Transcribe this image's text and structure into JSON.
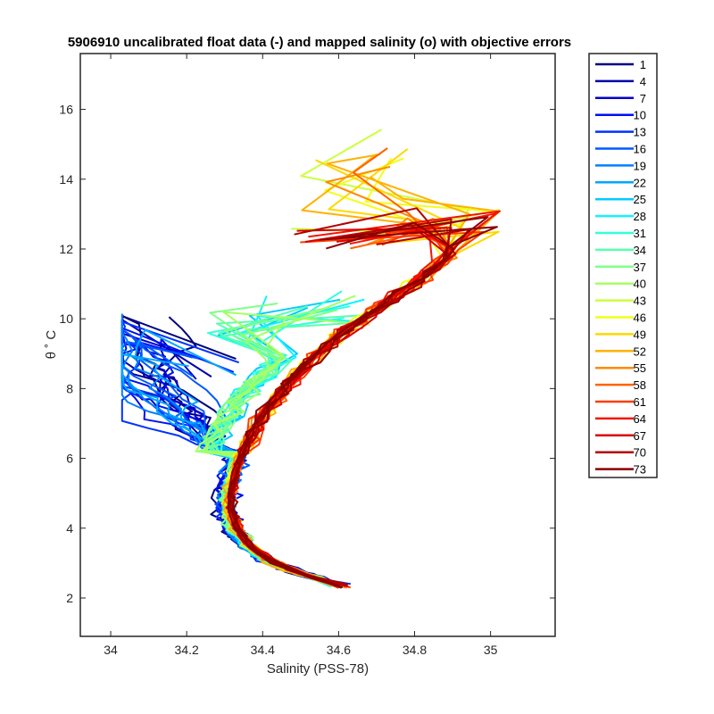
{
  "chart_data": {
    "type": "line",
    "title": "5906910 uncalibrated float data (-) and mapped salinity (o) with objective errors",
    "xlabel": "Salinity (PSS-78)",
    "ylabel": "θ ˚ C",
    "xlim": [
      33.92,
      35.17
    ],
    "ylim": [
      0.9,
      17.6
    ],
    "xticks": [
      34,
      34.2,
      34.4,
      34.6,
      34.8,
      35
    ],
    "xtick_labels": [
      "34",
      "34.2",
      "34.4",
      "34.6",
      "34.8",
      "35"
    ],
    "yticks": [
      2,
      4,
      6,
      8,
      10,
      12,
      14,
      16
    ],
    "ytick_labels": [
      "2",
      "4",
      "6",
      "8",
      "10",
      "12",
      "14",
      "16"
    ],
    "grid": false,
    "legend_position": "outside-right",
    "colormap": "jet",
    "series": [
      {
        "name": "1",
        "color": "#000080"
      },
      {
        "name": "4",
        "color": "#0000a6"
      },
      {
        "name": "7",
        "color": "#0000cc"
      },
      {
        "name": "10",
        "color": "#0010f3"
      },
      {
        "name": "13",
        "color": "#0033ff"
      },
      {
        "name": "16",
        "color": "#0059ff"
      },
      {
        "name": "19",
        "color": "#0080ff"
      },
      {
        "name": "22",
        "color": "#00a6ff"
      },
      {
        "name": "25",
        "color": "#00ccff"
      },
      {
        "name": "28",
        "color": "#11f3ff"
      },
      {
        "name": "31",
        "color": "#33ffd8"
      },
      {
        "name": "34",
        "color": "#59ffb1"
      },
      {
        "name": "37",
        "color": "#80ff8a"
      },
      {
        "name": "40",
        "color": "#a6ff63"
      },
      {
        "name": "43",
        "color": "#ccff3c"
      },
      {
        "name": "46",
        "color": "#f2ff15"
      },
      {
        "name": "49",
        "color": "#ffd800"
      },
      {
        "name": "52",
        "color": "#ffb100"
      },
      {
        "name": "55",
        "color": "#ff8a00"
      },
      {
        "name": "58",
        "color": "#ff6300"
      },
      {
        "name": "61",
        "color": "#ff3c00"
      },
      {
        "name": "64",
        "color": "#f31500"
      },
      {
        "name": "67",
        "color": "#d90000"
      },
      {
        "name": "70",
        "color": "#b30000"
      },
      {
        "name": "73",
        "color": "#8c0000"
      }
    ]
  }
}
